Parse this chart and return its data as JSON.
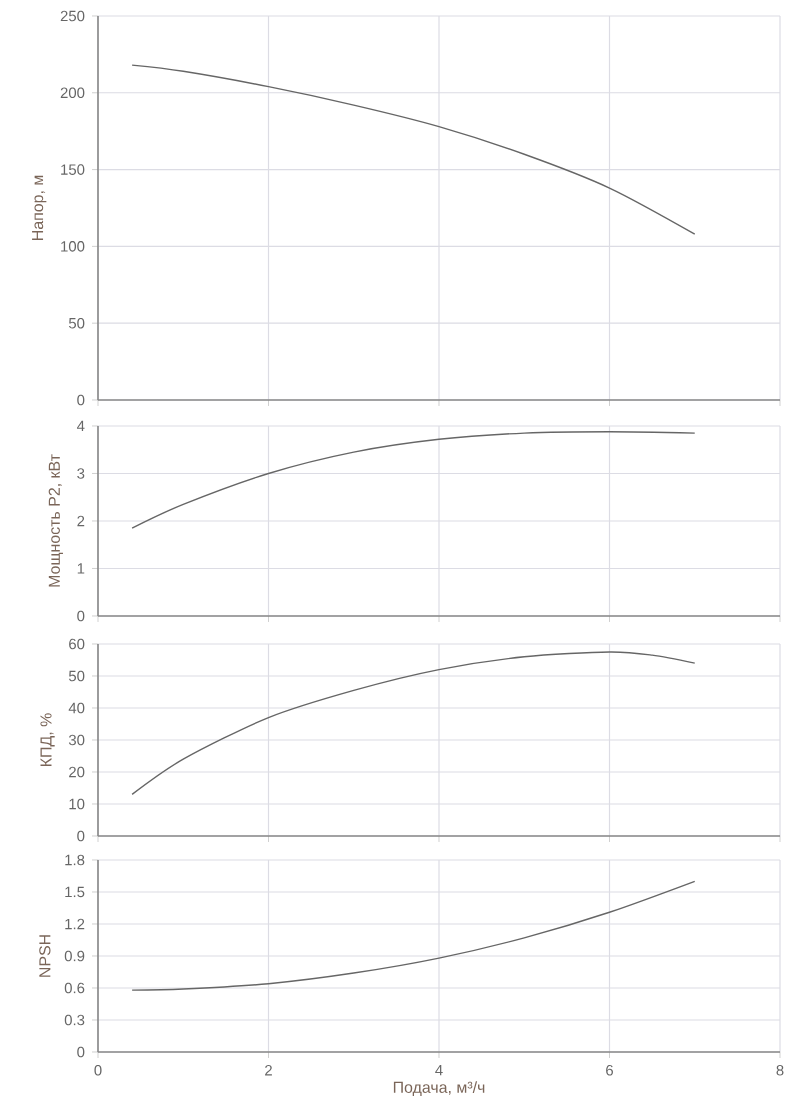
{
  "chart_data": [
    {
      "type": "line",
      "ylabel": "Напор, м",
      "x": [
        0.4,
        1,
        2,
        3,
        4,
        5,
        6,
        7
      ],
      "values": [
        218,
        214,
        204,
        192,
        178,
        160,
        138,
        108
      ],
      "color": "#666666",
      "xlim": [
        0,
        8
      ],
      "xticks": [
        0,
        2,
        4,
        6,
        8
      ],
      "ylim": [
        0,
        250
      ],
      "yticks": [
        0,
        50,
        100,
        150,
        200,
        250
      ],
      "grid": true,
      "tick_labels": "y"
    },
    {
      "type": "line",
      "ylabel": "Мощность P2, кВт",
      "x": [
        0.4,
        1,
        2,
        3,
        4,
        5,
        6,
        7
      ],
      "values": [
        1.85,
        2.35,
        3.0,
        3.45,
        3.72,
        3.85,
        3.88,
        3.85
      ],
      "color": "#666666",
      "xlim": [
        0,
        8
      ],
      "xticks": [
        0,
        2,
        4,
        6,
        8
      ],
      "ylim": [
        0,
        4
      ],
      "yticks": [
        0,
        1,
        2,
        3,
        4
      ],
      "grid": true,
      "tick_labels": "y"
    },
    {
      "type": "line",
      "ylabel": "КПД, %",
      "x": [
        0.4,
        1,
        2,
        3,
        4,
        5,
        6,
        6.5,
        7
      ],
      "values": [
        13,
        24,
        37,
        45.5,
        52,
        56,
        57.5,
        56.5,
        54
      ],
      "color": "#666666",
      "xlim": [
        0,
        8
      ],
      "xticks": [
        0,
        2,
        4,
        6,
        8
      ],
      "ylim": [
        0,
        60
      ],
      "yticks": [
        0,
        10,
        20,
        30,
        40,
        50,
        60
      ],
      "grid": true,
      "tick_labels": "y"
    },
    {
      "type": "line",
      "ylabel": "NPSH",
      "xlabel": "Подача, м³/ч",
      "x": [
        0.4,
        1,
        2,
        3,
        4,
        5,
        6,
        7
      ],
      "values": [
        0.58,
        0.59,
        0.64,
        0.74,
        0.88,
        1.07,
        1.31,
        1.6
      ],
      "color": "#666666",
      "xlim": [
        0,
        8
      ],
      "xticks": [
        0,
        2,
        4,
        6,
        8
      ],
      "ylim": [
        0,
        1.8
      ],
      "yticks": [
        0,
        0.3,
        0.6,
        0.9,
        1.2,
        1.5,
        1.8
      ],
      "grid": true
    }
  ]
}
